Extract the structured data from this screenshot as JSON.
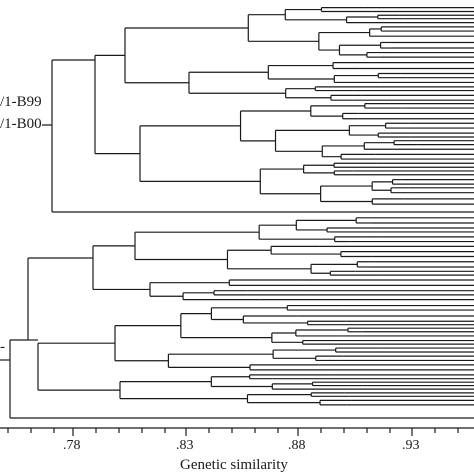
{
  "labels": {
    "cluster_a_line1": "/1-B99",
    "cluster_a_line2": "/1-B00",
    "cluster_b": "-"
  },
  "axis": {
    "title": "Genetic similarity",
    "ticks": [
      ".78",
      ".83",
      ".88",
      ".93"
    ]
  },
  "chart_data": {
    "type": "dendrogram",
    "xlabel": "Genetic similarity",
    "x_ticks": [
      0.78,
      0.83,
      0.88,
      0.93
    ],
    "xlim": [
      0.75,
      0.96
    ],
    "n_leaves": 96,
    "groups": [
      {
        "label": "/1-B99 /1-B00",
        "join_similarity": 0.77
      }
    ],
    "root_similarity": 0.75
  }
}
